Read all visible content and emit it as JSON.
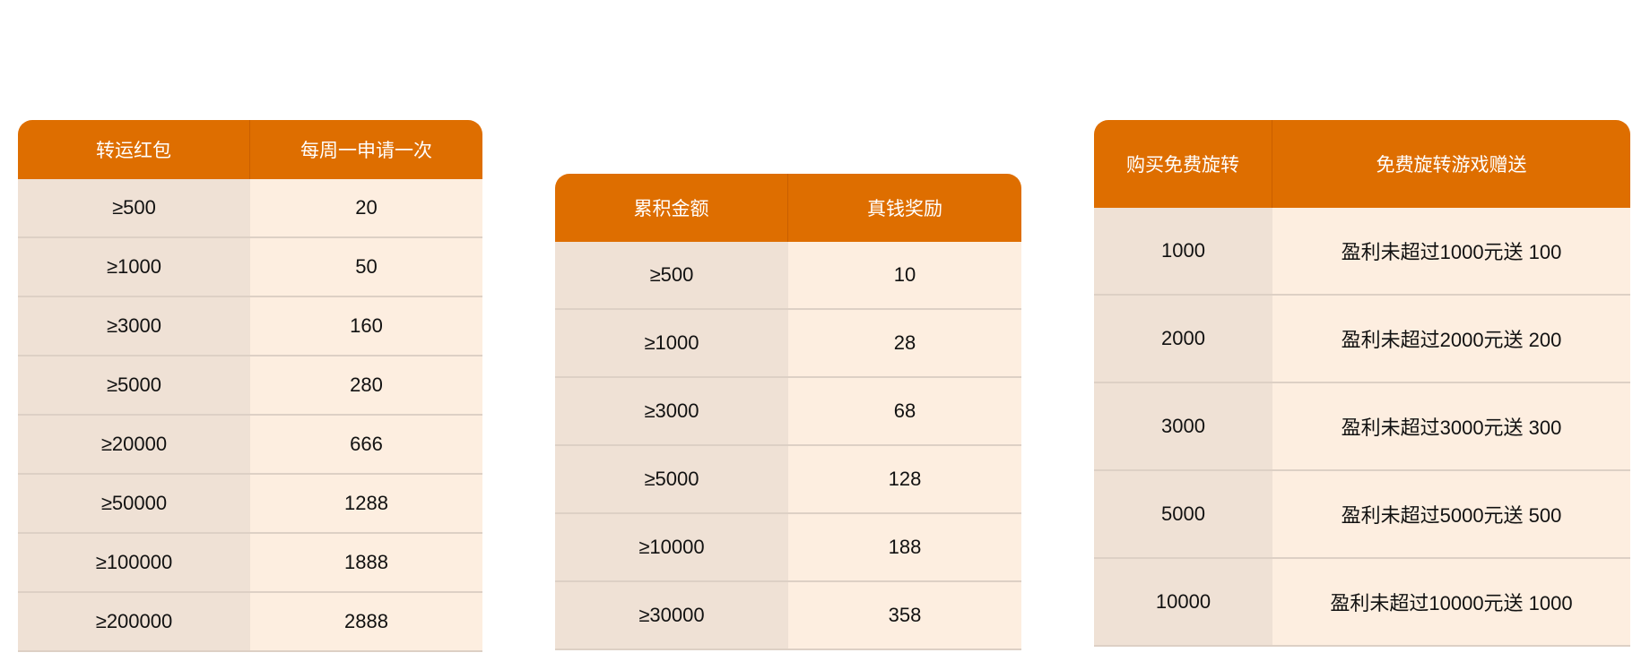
{
  "tables": [
    {
      "headers": [
        "转运红包",
        "每周一申请一次"
      ],
      "rows": [
        [
          "≥500",
          "20"
        ],
        [
          "≥1000",
          "50"
        ],
        [
          "≥3000",
          "160"
        ],
        [
          "≥5000",
          "280"
        ],
        [
          "≥20000",
          "666"
        ],
        [
          "≥50000",
          "1288"
        ],
        [
          "≥100000",
          "1888"
        ],
        [
          "≥200000",
          "2888"
        ]
      ]
    },
    {
      "headers": [
        "累积金额",
        "真钱奖励"
      ],
      "rows": [
        [
          "≥500",
          "10"
        ],
        [
          "≥1000",
          "28"
        ],
        [
          "≥3000",
          "68"
        ],
        [
          "≥5000",
          "128"
        ],
        [
          "≥10000",
          "188"
        ],
        [
          "≥30000",
          "358"
        ]
      ]
    },
    {
      "headers": [
        "购买免费旋转",
        "免费旋转游戏赠送"
      ],
      "rows": [
        [
          "1000",
          "盈利未超过1000元送 100"
        ],
        [
          "2000",
          "盈利未超过2000元送 200"
        ],
        [
          "3000",
          "盈利未超过3000元送 300"
        ],
        [
          "5000",
          "盈利未超过5000元送 500"
        ],
        [
          "10000",
          "盈利未超过10000元送 1000"
        ]
      ]
    }
  ],
  "colors": {
    "header": "#DE6E00",
    "left_cell": "#EFE1D5",
    "right_cell": "#FDEEE0"
  }
}
